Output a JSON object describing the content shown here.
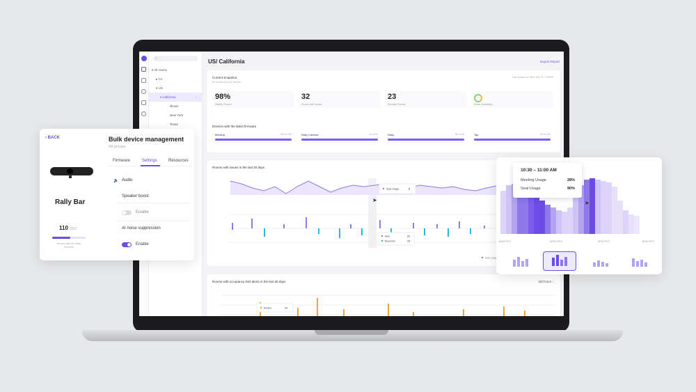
{
  "colors": {
    "accent": "#6b4de6",
    "accent_light": "#b3a4f1",
    "teal": "#2bb7d1",
    "orange": "#f2a43a",
    "green": "#8fd16b"
  },
  "app": {
    "rail_icons": [
      "logo-icon",
      "home-icon",
      "book-icon",
      "cloud-icon",
      "bulb-icon",
      "gear-icon"
    ],
    "tree": [
      {
        "label": "All rooms",
        "indent": 0
      },
      {
        "label": "CA",
        "indent": 1
      },
      {
        "label": "US",
        "indent": 1
      },
      {
        "label": "California",
        "indent": 2,
        "selected": true
      },
      {
        "label": "Illinois",
        "indent": 3
      },
      {
        "label": "New York",
        "indent": 3
      },
      {
        "label": "Texas",
        "indent": 3
      }
    ],
    "page_title": "US/ California",
    "export_label": "Export Report",
    "snapshot": {
      "title": "Current Snapshot",
      "subtitle": "50 rooms with 200 devices",
      "updated": "Last update on: Wed, Dec 21, 3:00PM",
      "kpis": [
        {
          "value": "98%",
          "label": "Healthy Rooms"
        },
        {
          "value": "32",
          "label": "Rooms with Issues"
        },
        {
          "value": "23",
          "label": "Elevated Rooms"
        },
        {
          "value": "",
          "label": "Room Availability"
        }
      ]
    },
    "devices": {
      "title": "Devices with the latest firmware",
      "items": [
        {
          "name": "MeetUp",
          "count": "100 of 120"
        },
        {
          "name": "Rally Camera",
          "count": "21 of 30"
        },
        {
          "name": "Rally",
          "count": "80 of 90"
        },
        {
          "name": "Tap",
          "count": "90 of 100"
        }
      ]
    },
    "issues_chart": {
      "title": "Rooms with issues in the last 30 days",
      "tooltip_top": "Seat Usage",
      "tooltip_top_value": "8",
      "tooltip_new_label": "New",
      "tooltip_new_value": "20",
      "tooltip_resolved_label": "Resolved",
      "tooltip_resolved_value": "15",
      "legend": "Seat Usage"
    },
    "occupancy_chart": {
      "title": "Rooms with occupancy limit alerts in the last 30 days",
      "details_label": "DETAILS ›",
      "tooltip_label": "Rooms",
      "tooltip_value": "10"
    }
  },
  "panel": {
    "back_label": "‹ BACK",
    "title": "Bulk device management",
    "subtitle": "All groups",
    "tabs": [
      "Firmware",
      "Settings",
      "Resources"
    ],
    "active_tab": "Settings",
    "product_name": "Rally Bar",
    "count_value": "110",
    "count_total": "/202",
    "count_progress": 0.54,
    "count_note": "Devices with the latest firmware",
    "audio_label": "Audio",
    "speaker_boost_label": "Speaker boost",
    "speaker_boost_toggle": "Enable",
    "speaker_boost_on": false,
    "ai_label": "AI noise suppression",
    "ai_toggle": "Enable",
    "ai_on": true
  },
  "usage_popup": {
    "time_range": "10:30 – 11:00 AM",
    "rows": [
      {
        "label": "Meeting Usage",
        "value": "28%"
      },
      {
        "label": "Seat Usage",
        "value": "90%"
      }
    ],
    "x_ticks": [
      "8AM PDT",
      "12PM PDT",
      "4PM PDT",
      "8PM PDT"
    ],
    "thumbnails": 4,
    "selected_thumbnail": 1
  }
}
